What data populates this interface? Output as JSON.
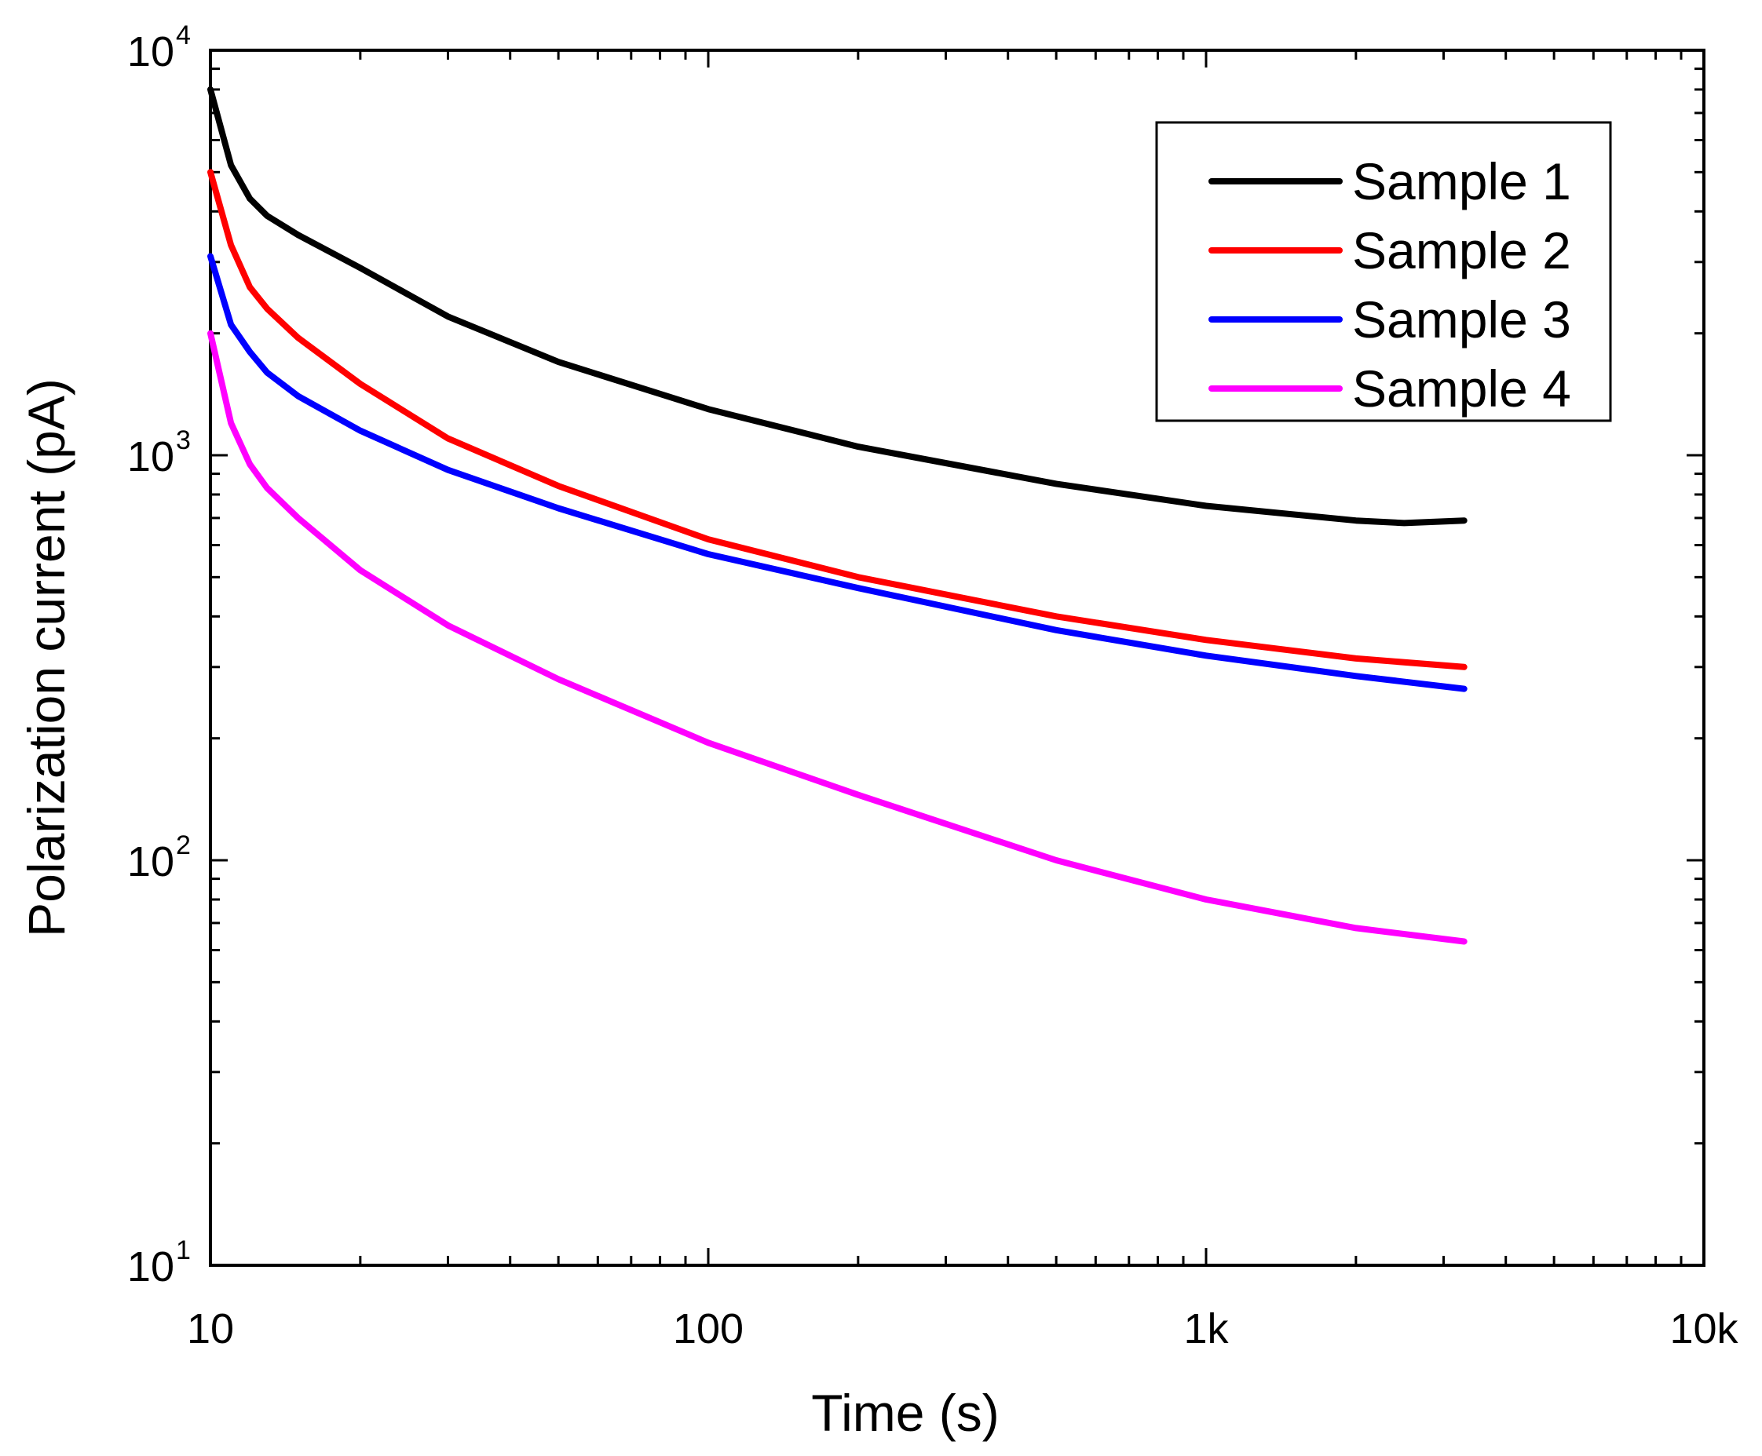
{
  "chart_data": {
    "type": "line",
    "title": "",
    "xlabel": "Time (s)",
    "ylabel": "Polarization current (pA)",
    "xscale": "log",
    "yscale": "log",
    "xlim": [
      10,
      10000
    ],
    "ylim": [
      10,
      10000
    ],
    "x_ticks": [
      {
        "value": 10,
        "label": "10"
      },
      {
        "value": 100,
        "label": "100"
      },
      {
        "value": 1000,
        "label": "1k"
      },
      {
        "value": 10000,
        "label": "10k"
      }
    ],
    "y_ticks": [
      {
        "value": 10,
        "base": "10",
        "exp": "1"
      },
      {
        "value": 100,
        "base": "10",
        "exp": "2"
      },
      {
        "value": 1000,
        "base": "10",
        "exp": "3"
      },
      {
        "value": 10000,
        "base": "10",
        "exp": "4"
      }
    ],
    "legend_position": "top-right",
    "series": [
      {
        "name": "Sample 1",
        "color": "#000000",
        "x": [
          10,
          11,
          12,
          13,
          15,
          20,
          30,
          50,
          100,
          200,
          500,
          1000,
          2000,
          2500,
          3300
        ],
        "y": [
          8000,
          5200,
          4300,
          3900,
          3500,
          2900,
          2200,
          1700,
          1300,
          1050,
          850,
          750,
          690,
          680,
          690
        ]
      },
      {
        "name": "Sample 2",
        "color": "#ff0000",
        "x": [
          10,
          11,
          12,
          13,
          15,
          20,
          30,
          50,
          100,
          200,
          500,
          1000,
          2000,
          3300
        ],
        "y": [
          5000,
          3300,
          2600,
          2300,
          1950,
          1500,
          1100,
          840,
          620,
          500,
          400,
          350,
          315,
          300
        ]
      },
      {
        "name": "Sample 3",
        "color": "#0000ff",
        "x": [
          10,
          11,
          12,
          13,
          15,
          20,
          30,
          50,
          100,
          200,
          500,
          1000,
          2000,
          3300
        ],
        "y": [
          3100,
          2100,
          1800,
          1600,
          1400,
          1150,
          920,
          740,
          570,
          470,
          370,
          320,
          285,
          265
        ]
      },
      {
        "name": "Sample 4",
        "color": "#ff00ff",
        "x": [
          10,
          11,
          12,
          13,
          15,
          20,
          30,
          50,
          100,
          200,
          500,
          1000,
          2000,
          3300
        ],
        "y": [
          2000,
          1200,
          950,
          830,
          700,
          520,
          380,
          280,
          195,
          145,
          100,
          80,
          68,
          63
        ]
      }
    ]
  }
}
